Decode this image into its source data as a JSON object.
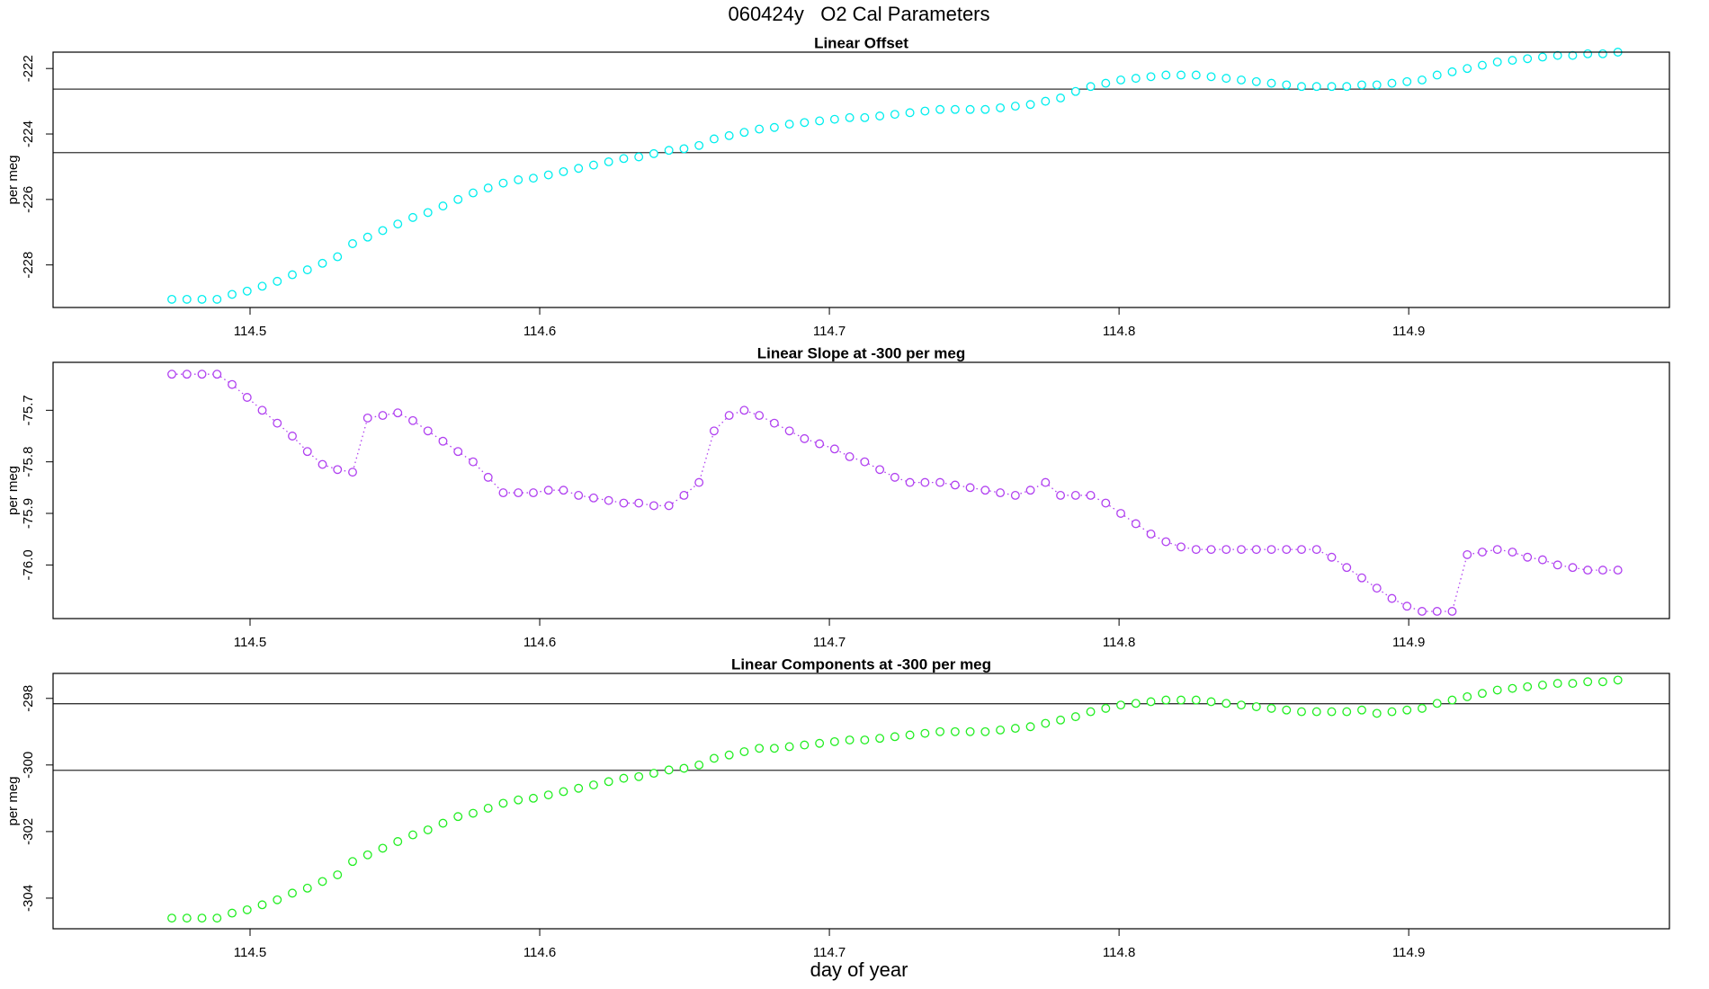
{
  "title": "060424y   O2 Cal Parameters",
  "chart_data": [
    {
      "type": "scatter",
      "title": "Linear Offset",
      "ylabel": "per meg",
      "color": "#00eeee",
      "xlim": [
        114.432,
        114.99
      ],
      "xticks": [
        114.5,
        114.6,
        114.7,
        114.8,
        114.9
      ],
      "ylim": [
        -229.3,
        -221.5
      ],
      "yticks": [
        -228,
        -226,
        -224,
        -222
      ],
      "hlines": [
        -222.63,
        -224.57
      ],
      "x": [
        114.473,
        114.4782,
        114.4834,
        114.4886,
        114.4938,
        114.499,
        114.5042,
        114.5094,
        114.5146,
        114.5198,
        114.525,
        114.5302,
        114.5354,
        114.5406,
        114.5458,
        114.551,
        114.5562,
        114.5614,
        114.5666,
        114.5718,
        114.577,
        114.5822,
        114.5874,
        114.5926,
        114.5978,
        114.603,
        114.6082,
        114.6134,
        114.6186,
        114.6238,
        114.629,
        114.6342,
        114.6394,
        114.6446,
        114.6498,
        114.655,
        114.6602,
        114.6654,
        114.6706,
        114.6758,
        114.681,
        114.6862,
        114.6914,
        114.6966,
        114.7018,
        114.707,
        114.7122,
        114.7174,
        114.7226,
        114.7278,
        114.733,
        114.7382,
        114.7434,
        114.7486,
        114.7538,
        114.759,
        114.7642,
        114.7694,
        114.7746,
        114.7798,
        114.785,
        114.7902,
        114.7954,
        114.8006,
        114.8058,
        114.811,
        114.8162,
        114.8214,
        114.8266,
        114.8318,
        114.837,
        114.8422,
        114.8474,
        114.8526,
        114.8578,
        114.863,
        114.8682,
        114.8734,
        114.8786,
        114.8838,
        114.889,
        114.8942,
        114.8994,
        114.9046,
        114.9098,
        114.915,
        114.9202,
        114.9254,
        114.9306,
        114.9358,
        114.941,
        114.9462,
        114.9514,
        114.9566,
        114.9618,
        114.967,
        114.9722
      ],
      "values": [
        -229.05,
        -229.05,
        -229.05,
        -229.05,
        -228.9,
        -228.8,
        -228.65,
        -228.5,
        -228.3,
        -228.15,
        -227.95,
        -227.75,
        -227.35,
        -227.15,
        -226.95,
        -226.75,
        -226.55,
        -226.4,
        -226.2,
        -226.0,
        -225.8,
        -225.65,
        -225.5,
        -225.4,
        -225.35,
        -225.25,
        -225.15,
        -225.05,
        -224.95,
        -224.85,
        -224.75,
        -224.7,
        -224.6,
        -224.5,
        -224.45,
        -224.35,
        -224.15,
        -224.05,
        -223.95,
        -223.85,
        -223.8,
        -223.7,
        -223.65,
        -223.6,
        -223.55,
        -223.5,
        -223.5,
        -223.45,
        -223.4,
        -223.35,
        -223.3,
        -223.25,
        -223.25,
        -223.25,
        -223.25,
        -223.2,
        -223.15,
        -223.1,
        -223.0,
        -222.9,
        -222.7,
        -222.55,
        -222.45,
        -222.35,
        -222.3,
        -222.25,
        -222.2,
        -222.2,
        -222.2,
        -222.25,
        -222.3,
        -222.35,
        -222.4,
        -222.45,
        -222.5,
        -222.55,
        -222.55,
        -222.55,
        -222.55,
        -222.5,
        -222.5,
        -222.45,
        -222.4,
        -222.35,
        -222.2,
        -222.1,
        -222.0,
        -221.9,
        -221.8,
        -221.75,
        -221.7,
        -221.65,
        -221.6,
        -221.6,
        -221.55,
        -221.55,
        -221.5
      ]
    },
    {
      "type": "scatter",
      "title": "Linear Slope at -300 per meg",
      "ylabel": "per meg",
      "color": "#b040f0",
      "lines": true,
      "xlim": [
        114.432,
        114.99
      ],
      "xticks": [
        114.5,
        114.6,
        114.7,
        114.8,
        114.9
      ],
      "ylim": [
        -76.104,
        -75.607
      ],
      "yticks": [
        {
          "value": -76,
          "label": "-76.0"
        },
        -75.9,
        -75.8,
        -75.7
      ],
      "x": [
        114.473,
        114.4782,
        114.4834,
        114.4886,
        114.4938,
        114.499,
        114.5042,
        114.5094,
        114.5146,
        114.5198,
        114.525,
        114.5302,
        114.5354,
        114.5406,
        114.5458,
        114.551,
        114.5562,
        114.5614,
        114.5666,
        114.5718,
        114.577,
        114.5822,
        114.5874,
        114.5926,
        114.5978,
        114.603,
        114.6082,
        114.6134,
        114.6186,
        114.6238,
        114.629,
        114.6342,
        114.6394,
        114.6446,
        114.6498,
        114.655,
        114.6602,
        114.6654,
        114.6706,
        114.6758,
        114.681,
        114.6862,
        114.6914,
        114.6966,
        114.7018,
        114.707,
        114.7122,
        114.7174,
        114.7226,
        114.7278,
        114.733,
        114.7382,
        114.7434,
        114.7486,
        114.7538,
        114.759,
        114.7642,
        114.7694,
        114.7746,
        114.7798,
        114.785,
        114.7902,
        114.7954,
        114.8006,
        114.8058,
        114.811,
        114.8162,
        114.8214,
        114.8266,
        114.8318,
        114.837,
        114.8422,
        114.8474,
        114.8526,
        114.8578,
        114.863,
        114.8682,
        114.8734,
        114.8786,
        114.8838,
        114.889,
        114.8942,
        114.8994,
        114.9046,
        114.9098,
        114.915,
        114.9202,
        114.9254,
        114.9306,
        114.9358,
        114.941,
        114.9462,
        114.9514,
        114.9566,
        114.9618,
        114.967,
        114.9722
      ],
      "values": [
        -75.63,
        -75.63,
        -75.63,
        -75.63,
        -75.65,
        -75.675,
        -75.7,
        -75.725,
        -75.75,
        -75.78,
        -75.805,
        -75.815,
        -75.82,
        -75.715,
        -75.71,
        -75.705,
        -75.72,
        -75.74,
        -75.76,
        -75.78,
        -75.8,
        -75.83,
        -75.86,
        -75.86,
        -75.86,
        -75.855,
        -75.855,
        -75.865,
        -75.87,
        -75.875,
        -75.88,
        -75.88,
        -75.885,
        -75.885,
        -75.865,
        -75.84,
        -75.74,
        -75.71,
        -75.7,
        -75.71,
        -75.725,
        -75.74,
        -75.755,
        -75.765,
        -75.775,
        -75.79,
        -75.8,
        -75.815,
        -75.83,
        -75.84,
        -75.84,
        -75.84,
        -75.845,
        -75.85,
        -75.855,
        -75.86,
        -75.865,
        -75.855,
        -75.84,
        -75.865,
        -75.865,
        -75.865,
        -75.88,
        -75.9,
        -75.92,
        -75.94,
        -75.955,
        -75.965,
        -75.97,
        -75.97,
        -75.97,
        -75.97,
        -75.97,
        -75.97,
        -75.97,
        -75.97,
        -75.97,
        -75.985,
        -76.005,
        -76.025,
        -76.045,
        -76.065,
        -76.08,
        -76.09,
        -76.09,
        -76.09,
        -75.98,
        -75.975,
        -75.97,
        -75.975,
        -75.985,
        -75.99,
        -76.0,
        -76.005,
        -76.01,
        -76.01,
        -76.01
      ]
    },
    {
      "type": "scatter",
      "title": "Linear Components at -300 per meg",
      "ylabel": "per meg",
      "xlabel": "day of year",
      "color": "#22ee22",
      "xlim": [
        114.432,
        114.99
      ],
      "xticks": [
        114.5,
        114.6,
        114.7,
        114.8,
        114.9
      ],
      "ylim": [
        -304.92,
        -297.25
      ],
      "yticks": [
        -304,
        -302,
        -300,
        -298
      ],
      "hlines": [
        -298.16,
        -300.16
      ],
      "x": [
        114.473,
        114.4782,
        114.4834,
        114.4886,
        114.4938,
        114.499,
        114.5042,
        114.5094,
        114.5146,
        114.5198,
        114.525,
        114.5302,
        114.5354,
        114.5406,
        114.5458,
        114.551,
        114.5562,
        114.5614,
        114.5666,
        114.5718,
        114.577,
        114.5822,
        114.5874,
        114.5926,
        114.5978,
        114.603,
        114.6082,
        114.6134,
        114.6186,
        114.6238,
        114.629,
        114.6342,
        114.6394,
        114.6446,
        114.6498,
        114.655,
        114.6602,
        114.6654,
        114.6706,
        114.6758,
        114.681,
        114.6862,
        114.6914,
        114.6966,
        114.7018,
        114.707,
        114.7122,
        114.7174,
        114.7226,
        114.7278,
        114.733,
        114.7382,
        114.7434,
        114.7486,
        114.7538,
        114.759,
        114.7642,
        114.7694,
        114.7746,
        114.7798,
        114.785,
        114.7902,
        114.7954,
        114.8006,
        114.8058,
        114.811,
        114.8162,
        114.8214,
        114.8266,
        114.8318,
        114.837,
        114.8422,
        114.8474,
        114.8526,
        114.8578,
        114.863,
        114.8682,
        114.8734,
        114.8786,
        114.8838,
        114.889,
        114.8942,
        114.8994,
        114.9046,
        114.9098,
        114.915,
        114.9202,
        114.9254,
        114.9306,
        114.9358,
        114.941,
        114.9462,
        114.9514,
        114.9566,
        114.9618,
        114.967,
        114.9722
      ],
      "values": [
        -304.6,
        -304.6,
        -304.6,
        -304.6,
        -304.45,
        -304.35,
        -304.2,
        -304.05,
        -303.85,
        -303.7,
        -303.5,
        -303.3,
        -302.9,
        -302.7,
        -302.5,
        -302.3,
        -302.1,
        -301.95,
        -301.75,
        -301.55,
        -301.45,
        -301.3,
        -301.15,
        -301.05,
        -301.0,
        -300.9,
        -300.8,
        -300.7,
        -300.6,
        -300.5,
        -300.4,
        -300.35,
        -300.25,
        -300.15,
        -300.1,
        -300.0,
        -299.8,
        -299.7,
        -299.6,
        -299.5,
        -299.5,
        -299.45,
        -299.4,
        -299.35,
        -299.3,
        -299.25,
        -299.25,
        -299.2,
        -299.15,
        -299.1,
        -299.05,
        -299.0,
        -299.0,
        -299.0,
        -299.0,
        -298.95,
        -298.9,
        -298.85,
        -298.75,
        -298.65,
        -298.55,
        -298.4,
        -298.3,
        -298.2,
        -298.15,
        -298.1,
        -298.05,
        -298.05,
        -298.05,
        -298.1,
        -298.15,
        -298.2,
        -298.25,
        -298.3,
        -298.35,
        -298.4,
        -298.4,
        -298.4,
        -298.4,
        -298.35,
        -298.45,
        -298.4,
        -298.35,
        -298.3,
        -298.15,
        -298.05,
        -297.95,
        -297.85,
        -297.75,
        -297.7,
        -297.65,
        -297.6,
        -297.55,
        -297.55,
        -297.5,
        -297.5,
        -297.45
      ]
    }
  ]
}
